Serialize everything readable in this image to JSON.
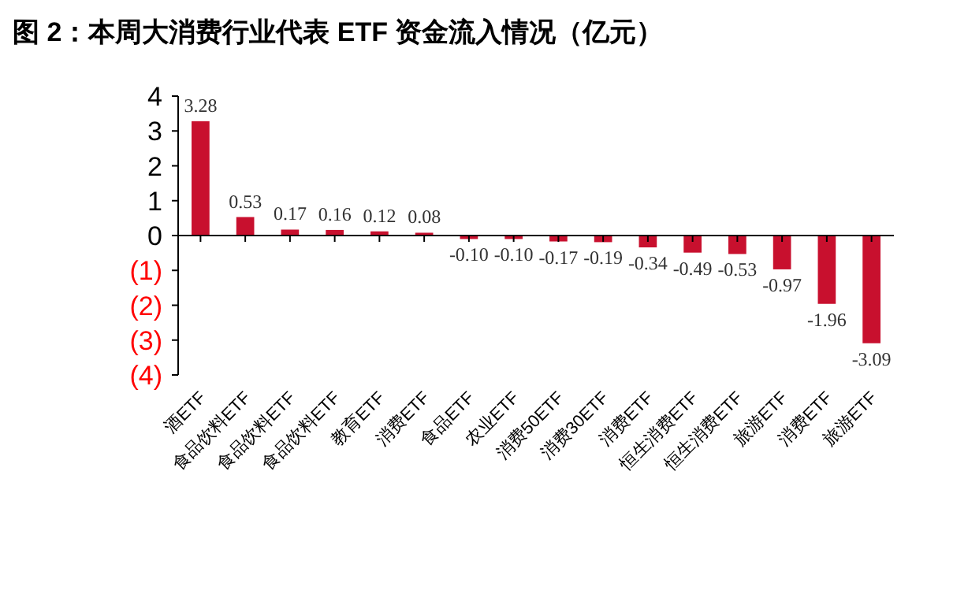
{
  "chart_data": {
    "type": "bar",
    "title": "图 2：本周大消费行业代表 ETF 资金流入情况（亿元）",
    "categories": [
      "酒ETF",
      "食品饮料ETF",
      "食品饮料ETF",
      "食品饮料ETF",
      "教育ETF",
      "消费ETF",
      "食品ETF",
      "农业ETF",
      "消费50ETF",
      "消费30ETF",
      "消费ETF",
      "恒生消费ETF",
      "恒生消费ETF",
      "旅游ETF",
      "消费ETF",
      "旅游ETF"
    ],
    "values": [
      3.28,
      0.53,
      0.17,
      0.16,
      0.12,
      0.08,
      -0.1,
      -0.1,
      -0.17,
      -0.19,
      -0.34,
      -0.49,
      -0.53,
      -0.97,
      -1.96,
      -3.09
    ],
    "value_labels": [
      "3.28",
      "0.53",
      "0.17",
      "0.16",
      "0.12",
      "0.08",
      "-0.10",
      "-0.10",
      "-0.17",
      "-0.19",
      "-0.34",
      "-0.49",
      "-0.53",
      "-0.97",
      "-1.96",
      "-3.09"
    ],
    "color": "#c8102e",
    "ylim": [
      -4,
      4
    ],
    "yticks": [
      4,
      3,
      2,
      1,
      0,
      {
        "value": -1,
        "label": "(1)"
      },
      {
        "value": -2,
        "label": "(2)"
      },
      {
        "value": -3,
        "label": "(3)"
      },
      {
        "value": -4,
        "label": "(4)"
      }
    ],
    "data_labels": false
  }
}
